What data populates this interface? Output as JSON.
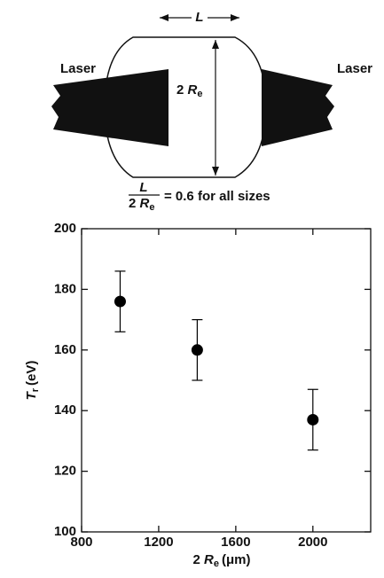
{
  "diagram": {
    "length_label": "L",
    "laser_left": "Laser",
    "laser_right": "Laser",
    "diameter_label": {
      "number": "2",
      "symbol": "R",
      "subscript": "e"
    },
    "formula": {
      "numerator": "L",
      "denominator": {
        "number": "2",
        "symbol": "R",
        "subscript": "e"
      },
      "rest": "= 0.6 for all sizes"
    }
  },
  "chart_data": {
    "type": "scatter",
    "xlabel": {
      "number": "2",
      "symbol": "R",
      "subscript": "e",
      "unit": "(μm)"
    },
    "ylabel": {
      "symbol": "T",
      "subscript": "r",
      "unit": "(eV)"
    },
    "x": [
      1000,
      1400,
      2000
    ],
    "values": [
      176,
      160,
      137
    ],
    "errors": [
      10,
      10,
      10
    ],
    "color": "#000000",
    "xlim": [
      800,
      2300
    ],
    "xticks": [
      800,
      1200,
      1600,
      2000
    ],
    "ylim": [
      100,
      200
    ],
    "yticks": [
      100,
      120,
      140,
      160,
      180,
      200
    ]
  }
}
